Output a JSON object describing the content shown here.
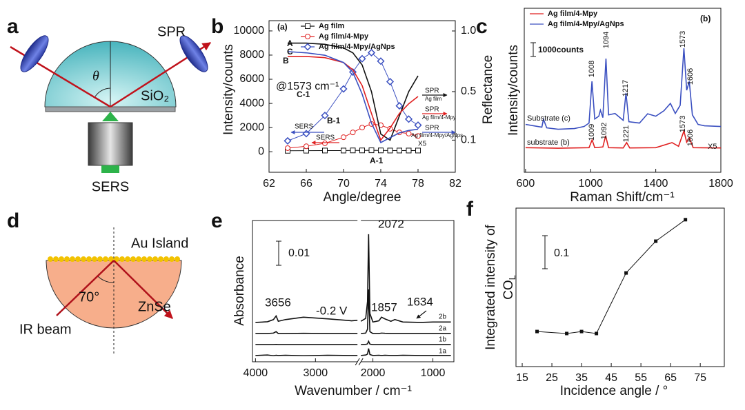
{
  "figure_a": {
    "panel": "a",
    "labels": {
      "spr": "SPR",
      "theta": "θ",
      "sio2": "SiO₂",
      "sers": "SERS"
    }
  },
  "figure_d": {
    "panel": "d",
    "labels": {
      "au": "Au Island",
      "angle": "70°",
      "znse": "ZnSe",
      "ir": "IR beam"
    }
  },
  "chart_data": [
    {
      "type": "line",
      "panel": "b",
      "title": "(a)",
      "x_label": "Angle/degree",
      "y_label": "Intensity/counts",
      "y2_label": "Reflectance",
      "xlim": [
        62,
        82
      ],
      "xticks": [
        62,
        66,
        70,
        74,
        78,
        82
      ],
      "ylim": [
        -1700,
        10850
      ],
      "yticks": [
        0,
        2000,
        4000,
        6000,
        8000,
        10000
      ],
      "y2lim": [
        -0.165,
        1.085
      ],
      "y2ticks": [
        0.1,
        0.5,
        {
          "value": 1,
          "label": "1.0"
        }
      ],
      "x": [
        64,
        66,
        68,
        70,
        71,
        72,
        73,
        74,
        75,
        76,
        77,
        78
      ],
      "series": [
        {
          "name": "Ag film",
          "label": "A-1",
          "color": "#111111",
          "marker": "square",
          "values": [
            80,
            90,
            100,
            100,
            110,
            110,
            120,
            110,
            100,
            100,
            100,
            100
          ]
        },
        {
          "name": "Ag film/4-Mpy",
          "label": "B-1",
          "color": "#e02020",
          "marker": "circle",
          "values": [
            300,
            450,
            700,
            1200,
            1600,
            2000,
            2300,
            2200,
            1900,
            1600,
            1500,
            1300
          ]
        },
        {
          "name": "Ag film/4-Mpy/AgNps",
          "label": "C-1",
          "color": "#3a4fc0",
          "marker": "diamond",
          "values": [
            900,
            1500,
            3000,
            5200,
            6600,
            7700,
            8200,
            7500,
            5800,
            3800,
            2700,
            2200
          ]
        },
        {
          "label": "A",
          "axis": "y2",
          "color": "#111111",
          "values": [
            0.9,
            0.9,
            0.89,
            0.86,
            0.82,
            0.72,
            0.5,
            0.15,
            0.1,
            0.3,
            0.5,
            0.63
          ]
        },
        {
          "label": "B",
          "axis": "y2",
          "color": "#e02020",
          "values": [
            0.79,
            0.79,
            0.78,
            0.74,
            0.68,
            0.55,
            0.32,
            0.1,
            0.2,
            0.32,
            0.4,
            0.46
          ]
        },
        {
          "label": "C",
          "axis": "y2",
          "color": "#3a4fc0",
          "values": [
            0.83,
            0.82,
            0.8,
            0.74,
            0.66,
            0.48,
            0.24,
            0.08,
            0.12,
            0.16,
            0.18,
            0.19
          ]
        }
      ],
      "annotations": [
        "@1573 cm⁻¹",
        "SERS",
        "SERS",
        "SPR",
        "Ag film",
        "SPR",
        "Ag film/4-Mpy",
        "SPR",
        "Ag film/4-Mpy/AgNps",
        "X5"
      ]
    },
    {
      "type": "line",
      "panel": "c",
      "title": "(b)",
      "x_label": "Raman Shift/cm⁻¹",
      "y_label": "Intensity/counts",
      "xlim": [
        592,
        1800
      ],
      "xticks": [
        600,
        1000,
        1400,
        1800
      ],
      "ylim": [
        0,
        12000
      ],
      "scale_bar": {
        "value": 1000,
        "label": "1000counts"
      },
      "series": [
        {
          "name": "Ag film/4-Mpy",
          "label": "substrate (b)",
          "color": "#e02020",
          "x": [
            600,
            800,
            990,
            1009,
            1025,
            1075,
            1092,
            1110,
            1200,
            1221,
            1240,
            1400,
            1500,
            1540,
            1573,
            1590,
            1606,
            1630,
            1800
          ],
          "values": [
            1800,
            1760,
            1800,
            2370,
            1800,
            1850,
            2670,
            1800,
            1780,
            2170,
            1780,
            1800,
            2170,
            1900,
            3020,
            2200,
            2520,
            1800,
            1780
          ]
        },
        {
          "name": "Ag film/4-Mpy/AgNps",
          "label": "Substrate (c)",
          "color": "#3a4fc0",
          "x": [
            600,
            700,
            710,
            730,
            800,
            900,
            960,
            990,
            1008,
            1025,
            1050,
            1060,
            1075,
            1094,
            1110,
            1150,
            1200,
            1217,
            1235,
            1300,
            1350,
            1400,
            1450,
            1490,
            1520,
            1550,
            1573,
            1590,
            1606,
            1625,
            1660,
            1700,
            1800
          ],
          "values": [
            3500,
            3300,
            3880,
            3250,
            3150,
            3200,
            3350,
            3600,
            6650,
            3900,
            4100,
            4540,
            4000,
            8320,
            4200,
            4300,
            3800,
            5800,
            3700,
            3600,
            4280,
            4100,
            4500,
            5040,
            4300,
            4900,
            9070,
            6000,
            6650,
            4200,
            3500,
            3400,
            3350
          ]
        }
      ],
      "annotations": [
        "1008",
        "1094",
        "1217",
        "1573",
        "1606",
        "1009",
        "1092",
        "1221",
        "1573",
        "1606",
        "X5"
      ]
    },
    {
      "type": "line",
      "panel": "e",
      "x_label": "Wavenumber / cm⁻¹",
      "y_label": "Absorbance",
      "xlim": [
        4050,
        650
      ],
      "xbreak": [
        2300,
        2200
      ],
      "xticks": [
        4000,
        3000,
        2000,
        1000
      ],
      "ylim": [
        0,
        0.0586
      ],
      "scale_bar": 0.01,
      "x": [
        4000,
        3800,
        3700,
        3656,
        3620,
        3500,
        3200,
        2800,
        2400,
        2300,
        2250,
        2200,
        2120,
        2090,
        2072,
        2050,
        2000,
        1900,
        1857,
        1800,
        1700,
        1634,
        1500,
        1200,
        1000,
        700
      ],
      "series": [
        {
          "label": "2b",
          "color": "#111111",
          "values": [
            0.0163,
            0.0166,
            0.0175,
            0.019,
            0.0168,
            0.0175,
            0.0185,
            0.0178,
            0.017,
            0.0172,
            null,
            0.0168,
            0.018,
            0.025,
            0.0529,
            0.02,
            0.0165,
            0.017,
            0.0185,
            0.0178,
            0.0168,
            0.0175,
            0.0165,
            0.0163,
            0.0165,
            0.0165
          ]
        },
        {
          "label": "2a",
          "color": "#111111",
          "values": [
            0.0117,
            0.0117,
            0.0119,
            0.0125,
            0.0117,
            0.0117,
            0.0118,
            0.0117,
            0.0117,
            0.0117,
            null,
            0.0117,
            0.0119,
            0.0135,
            0.03,
            0.0125,
            0.0117,
            0.0117,
            0.0119,
            0.0118,
            0.0117,
            0.0117,
            0.0117,
            0.0117,
            0.0117,
            0.0117
          ]
        },
        {
          "label": "1b",
          "color": "#111111",
          "values": [
            0.0071,
            0.0071,
            0.0071,
            0.0072,
            0.0071,
            0.0071,
            0.0071,
            0.0071,
            0.0071,
            0.0071,
            null,
            0.0071,
            0.0072,
            0.0074,
            0.0085,
            0.0073,
            0.0071,
            0.0071,
            0.0071,
            0.0071,
            0.0071,
            0.0071,
            0.0071,
            0.0071,
            0.0071,
            0.0071
          ]
        },
        {
          "label": "1a",
          "color": "#111111",
          "values": [
            0.0026,
            0.0028,
            0.0025,
            0.0027,
            0.0026,
            0.0027,
            0.0025,
            0.0027,
            0.0026,
            0.0026,
            null,
            0.0026,
            0.0028,
            0.0032,
            0.0055,
            0.003,
            0.0026,
            0.0027,
            0.0026,
            0.0027,
            0.0026,
            0.0026,
            0.0027,
            0.0026,
            0.0026,
            0.0026
          ]
        }
      ],
      "annotations": [
        "2072",
        "3656",
        "-0.2 V",
        "1857",
        "1634"
      ]
    },
    {
      "type": "line",
      "panel": "f",
      "x_label": "Incidence angle / °",
      "y_label": {
        "text": "Integrated intensity of",
        "text2": "CO",
        "subscript": "L"
      },
      "xlim": [
        12.9,
        83.1
      ],
      "xticks": [
        15,
        25,
        35,
        45,
        55,
        65,
        75
      ],
      "ylim": [
        0,
        0.479
      ],
      "scale_bar": 0.1,
      "x": [
        20,
        30,
        35,
        40,
        50,
        60,
        70
      ],
      "series": [
        {
          "color": "#111111",
          "marker": "filled-square",
          "values": [
            0.106,
            0.1,
            0.106,
            0.1,
            0.283,
            0.379,
            0.444
          ]
        }
      ]
    }
  ]
}
